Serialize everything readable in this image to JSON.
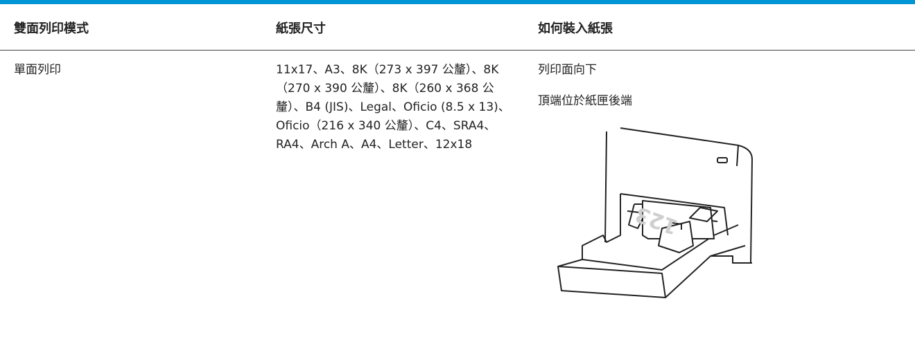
{
  "table": {
    "headers": [
      "雙面列印模式",
      "紙張尺寸",
      "如何裝入紙張"
    ],
    "rows": [
      {
        "mode": "單面列印",
        "sizes": "11x17、A3、8K（273 x 397 公釐）、8K（270 x 390 公釐）、8K（260 x 368 公釐）、B4 (JIS)、Legal、Oficio (8.5 x 13)、Oficio（216 x 340 公釐）、C4、SRA4、RA4、Arch A、A4、Letter、12x18",
        "instructions": [
          "列印面向下",
          "頂端位於紙匣後端"
        ]
      }
    ]
  },
  "figure": {
    "paper_label": "123"
  }
}
